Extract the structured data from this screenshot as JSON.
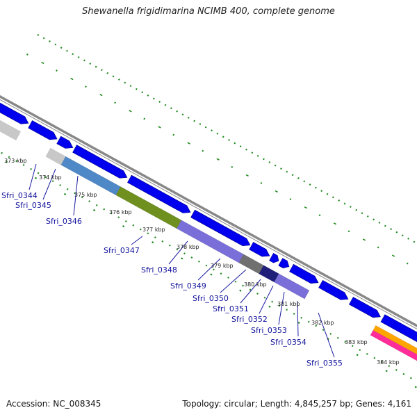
{
  "title": "Shewanella frigidimarina NCIMB 400, complete genome",
  "footer": {
    "accession": "Accession: NC_008345",
    "stats": "Topology: circular; Length: 4,845,257 bp; Genes: 4,161"
  },
  "colors": {
    "background": "#ffffff",
    "backbone": "#888888",
    "forward_gene": "#0000ee",
    "tick": "#1f8a1f",
    "label": "#10109a"
  },
  "kbp_labels": [
    "373 kbp",
    "374 kbp",
    "375 kbp",
    "376 kbp",
    "377 kbp",
    "378 kbp",
    "379 kbp",
    "380 kbp",
    "381 kbp",
    "382 kbp",
    "383 kbp",
    "384 kbp"
  ],
  "gene_labels": [
    "Sfri_0344",
    "Sfri_0345",
    "Sfri_0346",
    "Sfri_0347",
    "Sfri_0348",
    "Sfri_0349",
    "Sfri_0350",
    "Sfri_0351",
    "Sfri_0352",
    "Sfri_0353",
    "Sfri_0354",
    "Sfri_0355"
  ]
}
